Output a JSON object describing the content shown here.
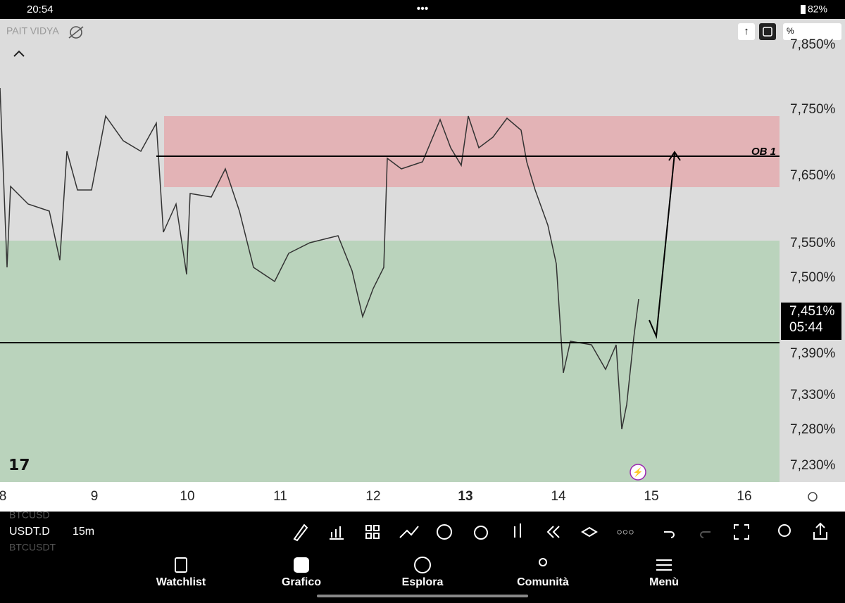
{
  "status_bar": {
    "time": "20:54",
    "battery": "82%"
  },
  "chart": {
    "watermark": "PAIT VIDYA",
    "scale_mode": "%",
    "price_labels": [
      "7,850%",
      "7,750%",
      "7,650%",
      "7,550%",
      "7,500%",
      "7,390%",
      "7,330%",
      "7,280%",
      "7,230%"
    ],
    "current_price": {
      "price": "7,451%",
      "countdown": "05:44"
    },
    "date_labels": [
      "8",
      "9",
      "10",
      "11",
      "12",
      "13",
      "14",
      "15",
      "16"
    ],
    "annotation": "OB 1"
  },
  "toolbar": {
    "symbol_above": "BTCUSD",
    "symbol": "USDT.D",
    "symbol_below": "BTCUSDT",
    "interval": "15m"
  },
  "nav": [
    "Watchlist",
    "Grafico",
    "Esplora",
    "Comunità",
    "Menù"
  ]
}
